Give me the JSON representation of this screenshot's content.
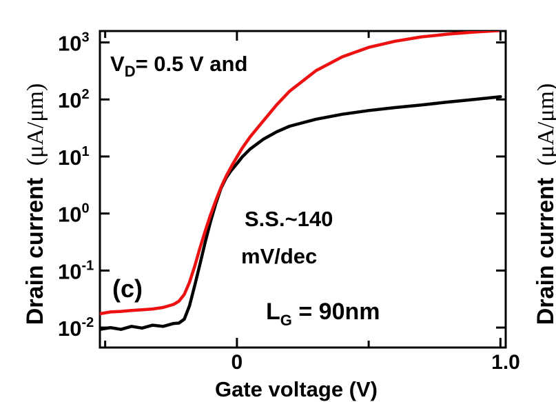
{
  "chart_data": {
    "type": "line",
    "title": "",
    "panel_label": "(c)",
    "xlabel": "Gate voltage (V)",
    "ylabel": "Drain current",
    "ylabel_unit": "(μA/μm)",
    "right_ylabel": "Drain current",
    "right_ylabel_unit": "(μA/μm)",
    "xlim": [
      -0.52,
      1.02
    ],
    "ylim_log10": [
      -2.35,
      3.2
    ],
    "yscale": "log",
    "x_ticks": [
      {
        "value": 0,
        "label": "0"
      },
      {
        "value": 1.0,
        "label": "1.0"
      }
    ],
    "y_ticks": [
      {
        "exp": -2,
        "base": "10",
        "sup": "-2"
      },
      {
        "exp": -1,
        "base": "10",
        "sup": "-1"
      },
      {
        "exp": 0,
        "base": "10",
        "sup": "0"
      },
      {
        "exp": 1,
        "base": "10",
        "sup": "1"
      },
      {
        "exp": 2,
        "base": "10",
        "sup": "2"
      },
      {
        "exp": 3,
        "base": "10",
        "sup": "3"
      }
    ],
    "series": [
      {
        "name": "black curve",
        "color": "#000000",
        "x": [
          -0.52,
          -0.48,
          -0.44,
          -0.4,
          -0.36,
          -0.32,
          -0.28,
          -0.24,
          -0.22,
          -0.2,
          -0.18,
          -0.16,
          -0.14,
          -0.12,
          -0.1,
          -0.08,
          -0.06,
          -0.04,
          -0.02,
          0.0,
          0.02,
          0.05,
          0.1,
          0.15,
          0.2,
          0.3,
          0.4,
          0.5,
          0.6,
          0.7,
          0.8,
          0.9,
          1.0
        ],
        "y": [
          0.0093,
          0.01,
          0.0093,
          0.0105,
          0.0098,
          0.011,
          0.0105,
          0.0118,
          0.012,
          0.014,
          0.024,
          0.055,
          0.13,
          0.32,
          0.72,
          1.5,
          2.8,
          4.3,
          5.8,
          7.5,
          9.8,
          13.5,
          20,
          27,
          34,
          45,
          55,
          64,
          72,
          80,
          90,
          100,
          112
        ]
      },
      {
        "name": "red curve",
        "color": "#ee1111",
        "x": [
          -0.52,
          -0.48,
          -0.44,
          -0.4,
          -0.36,
          -0.32,
          -0.28,
          -0.24,
          -0.22,
          -0.2,
          -0.18,
          -0.16,
          -0.14,
          -0.12,
          -0.1,
          -0.08,
          -0.06,
          -0.04,
          -0.02,
          0.0,
          0.02,
          0.05,
          0.1,
          0.15,
          0.2,
          0.3,
          0.4,
          0.5,
          0.6,
          0.7,
          0.8,
          0.9,
          1.0
        ],
        "y": [
          0.0175,
          0.0188,
          0.0192,
          0.02,
          0.0205,
          0.0212,
          0.0225,
          0.0255,
          0.029,
          0.038,
          0.062,
          0.12,
          0.25,
          0.5,
          0.95,
          1.7,
          2.9,
          4.6,
          6.8,
          9.8,
          14,
          22,
          42,
          80,
          140,
          320,
          560,
          820,
          1050,
          1250,
          1400,
          1520,
          1620
        ]
      }
    ],
    "annotations": [
      {
        "main": "V",
        "sub": "D",
        "rest": "= 0.5 V and"
      },
      {
        "main": "S.S.~140"
      },
      {
        "main": "mV/dec"
      },
      {
        "main": "L",
        "sub": "G",
        "rest": " = 90nm"
      }
    ]
  }
}
